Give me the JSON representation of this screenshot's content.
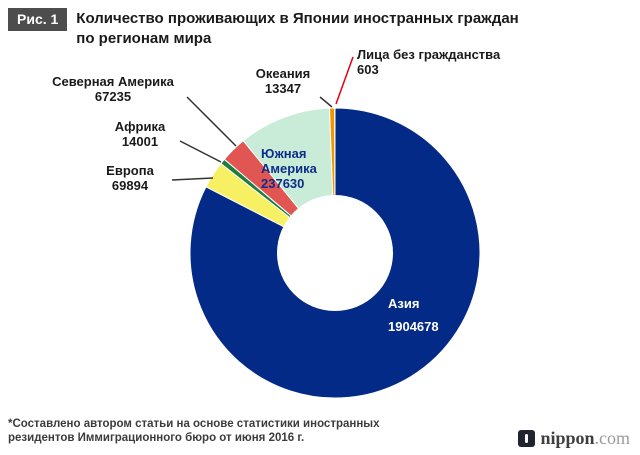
{
  "header": {
    "figure_label": "Рис. 1",
    "title_line1": "Количество проживающих в Японии иностранных граждан",
    "title_line2": "по регионам мира"
  },
  "chart_data": {
    "type": "pie",
    "donut": true,
    "title": "Количество проживающих в Японии иностранных граждан по регионам мира",
    "start_angle_deg": 0,
    "direction": "clockwise",
    "total": 2307388,
    "inner_radius_ratio": 0.4,
    "segments": [
      {
        "label": "Азия",
        "value": 1904678,
        "color": "#042a87"
      },
      {
        "label": "Европа",
        "value": 69894,
        "color": "#f7f062"
      },
      {
        "label": "Африка",
        "value": 14001,
        "color": "#1b7e3e"
      },
      {
        "label": "Северная Америка",
        "value": 67235,
        "color": "#e15552"
      },
      {
        "label": "Южная Америка",
        "value": 237630,
        "color": "#c9ecd9"
      },
      {
        "label": "Океания",
        "value": 13347,
        "color": "#f29600"
      },
      {
        "label": "Лица без гражданства",
        "value": 603,
        "color": "#e60012"
      }
    ]
  },
  "footnote": {
    "line1": "*Составлено автором статьи на основе статистики иностранных",
    "line2": "резидентов Иммиграционного бюро от июня 2016 г."
  },
  "logo": {
    "name": "nippon",
    "tld": ".com"
  }
}
